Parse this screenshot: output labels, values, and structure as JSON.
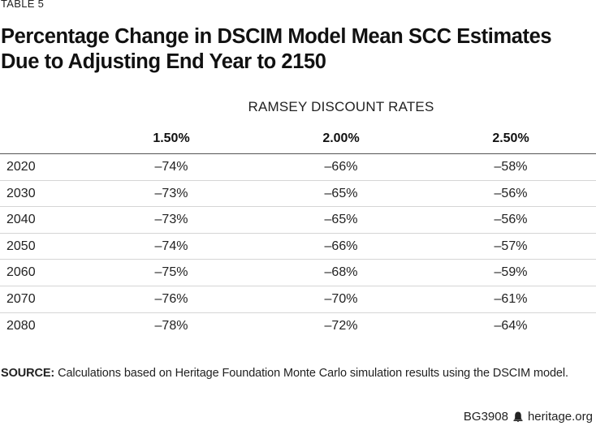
{
  "table_label": "TABLE 5",
  "title": "Percentage Change in DSCIM Model Mean SCC Estimates Due to Adjusting End Year to 2150",
  "group_header": "RAMSEY DISCOUNT RATES",
  "columns": [
    "1.50%",
    "2.00%",
    "2.50%"
  ],
  "rows": [
    {
      "year": "2020",
      "values": [
        "–74%",
        "–66%",
        "–58%"
      ]
    },
    {
      "year": "2030",
      "values": [
        "–73%",
        "–65%",
        "–56%"
      ]
    },
    {
      "year": "2040",
      "values": [
        "–73%",
        "–65%",
        "–56%"
      ]
    },
    {
      "year": "2050",
      "values": [
        "–74%",
        "–66%",
        "–57%"
      ]
    },
    {
      "year": "2060",
      "values": [
        "–75%",
        "–68%",
        "–59%"
      ]
    },
    {
      "year": "2070",
      "values": [
        "–76%",
        "–70%",
        "–61%"
      ]
    },
    {
      "year": "2080",
      "values": [
        "–78%",
        "–72%",
        "–64%"
      ]
    }
  ],
  "source": {
    "lead": "SOURCE:",
    "text": " Calculations based on Heritage Foundation Monte Carlo simulation results using the DSCIM model."
  },
  "footer": {
    "report_id": "BG3908",
    "site": "heritage.org",
    "logo_icon": "heritage-bell-icon"
  }
}
